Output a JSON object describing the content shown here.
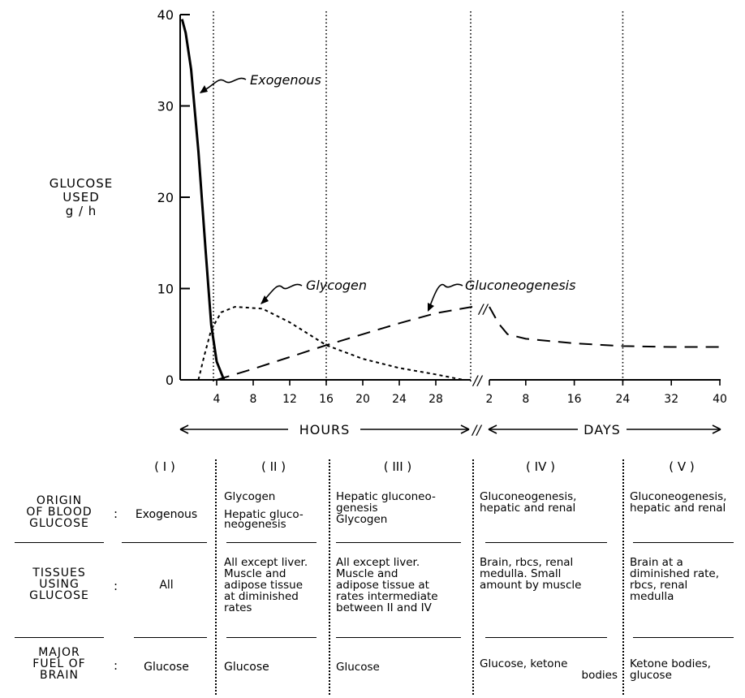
{
  "chart_data": {
    "type": "line",
    "ylabel": [
      "GLUCOSE",
      "USED",
      "g / h"
    ],
    "ylim": [
      0,
      40
    ],
    "yticks": [
      0,
      10,
      20,
      30,
      40
    ],
    "hours_ticks": [
      4,
      8,
      12,
      16,
      20,
      24,
      28
    ],
    "days_ticks": [
      2,
      8,
      16,
      24,
      32,
      40
    ],
    "x_hours_label": "HOURS",
    "x_days_label": "DAYS",
    "phase_boundaries": {
      "hours": [
        4,
        16,
        32
      ],
      "days": [
        24
      ]
    },
    "series": [
      {
        "name": "Exogenous",
        "style": "solid",
        "points": [
          {
            "t": "h",
            "x": 0.2,
            "y": 39.5
          },
          {
            "t": "h",
            "x": 0.6,
            "y": 38
          },
          {
            "t": "h",
            "x": 1.2,
            "y": 34
          },
          {
            "t": "h",
            "x": 2,
            "y": 25
          },
          {
            "t": "h",
            "x": 2.8,
            "y": 14
          },
          {
            "t": "h",
            "x": 3.4,
            "y": 6
          },
          {
            "t": "h",
            "x": 4,
            "y": 2
          },
          {
            "t": "h",
            "x": 4.8,
            "y": 0
          }
        ]
      },
      {
        "name": "Glycogen",
        "style": "dotted",
        "points": [
          {
            "t": "h",
            "x": 2,
            "y": 0
          },
          {
            "t": "h",
            "x": 2.6,
            "y": 2.5
          },
          {
            "t": "h",
            "x": 3.4,
            "y": 5.5
          },
          {
            "t": "h",
            "x": 4.5,
            "y": 7.4
          },
          {
            "t": "h",
            "x": 6,
            "y": 8
          },
          {
            "t": "h",
            "x": 9,
            "y": 7.8
          },
          {
            "t": "h",
            "x": 12,
            "y": 6.3
          },
          {
            "t": "h",
            "x": 16,
            "y": 3.8
          },
          {
            "t": "h",
            "x": 20,
            "y": 2.3
          },
          {
            "t": "h",
            "x": 24,
            "y": 1.3
          },
          {
            "t": "h",
            "x": 28,
            "y": 0.6
          },
          {
            "t": "h",
            "x": 31,
            "y": 0
          }
        ]
      },
      {
        "name": "Gluconeogenesis",
        "style": "dashed",
        "points": [
          {
            "t": "h",
            "x": 4,
            "y": 0
          },
          {
            "t": "h",
            "x": 8,
            "y": 1.2
          },
          {
            "t": "h",
            "x": 12,
            "y": 2.5
          },
          {
            "t": "h",
            "x": 16,
            "y": 3.8
          },
          {
            "t": "h",
            "x": 20,
            "y": 5
          },
          {
            "t": "h",
            "x": 24,
            "y": 6.2
          },
          {
            "t": "h",
            "x": 28,
            "y": 7.3
          },
          {
            "t": "h",
            "x": 32,
            "y": 8
          }
        ]
      },
      {
        "name": "Gluconeogenesis",
        "style": "dashed",
        "points": [
          {
            "t": "d",
            "x": 2,
            "y": 8
          },
          {
            "t": "d",
            "x": 3.5,
            "y": 6.2
          },
          {
            "t": "d",
            "x": 5,
            "y": 5
          },
          {
            "t": "d",
            "x": 8,
            "y": 4.5
          },
          {
            "t": "d",
            "x": 16,
            "y": 4.0
          },
          {
            "t": "d",
            "x": 24,
            "y": 3.7
          },
          {
            "t": "d",
            "x": 32,
            "y": 3.6
          },
          {
            "t": "d",
            "x": 40,
            "y": 3.6
          }
        ]
      }
    ],
    "labels": [
      "Exogenous",
      "Glycogen",
      "Gluconeogenesis"
    ]
  },
  "table": {
    "phases": [
      "( I )",
      "( II )",
      "( III )",
      "( IV )",
      "( V )"
    ],
    "rows": [
      {
        "label": [
          "ORIGIN",
          "OF BLOOD",
          "GLUCOSE"
        ],
        "cells": [
          "Exogenous",
          "Glycogen",
          "Hepatic gluconeo-\ngenesis\nGlycogen",
          "Gluconeogenesis,\nhepatic and renal",
          "Gluconeogenesis,\nhepatic and renal"
        ],
        "cell2_extra": "Hepatic gluco-\nneogenesis"
      },
      {
        "label": [
          "TISSUES",
          "USING",
          "GLUCOSE"
        ],
        "cells": [
          "All",
          "All except liver.\nMuscle and\nadipose tissue\nat diminished\nrates",
          "All except liver.\nMuscle and\nadipose tissue at\nrates intermediate\nbetween II and IV",
          "Brain, rbcs, renal\nmedulla. Small\namount by muscle",
          "Brain at a\ndiminished rate,\nrbcs, renal\nmedulla"
        ]
      },
      {
        "label": [
          "MAJOR",
          "FUEL OF",
          "BRAIN"
        ],
        "cells": [
          "Glucose",
          "Glucose",
          "Glucose",
          "Glucose, ketone\nbodies",
          "Ketone bodies,\nglucose"
        ]
      }
    ]
  }
}
